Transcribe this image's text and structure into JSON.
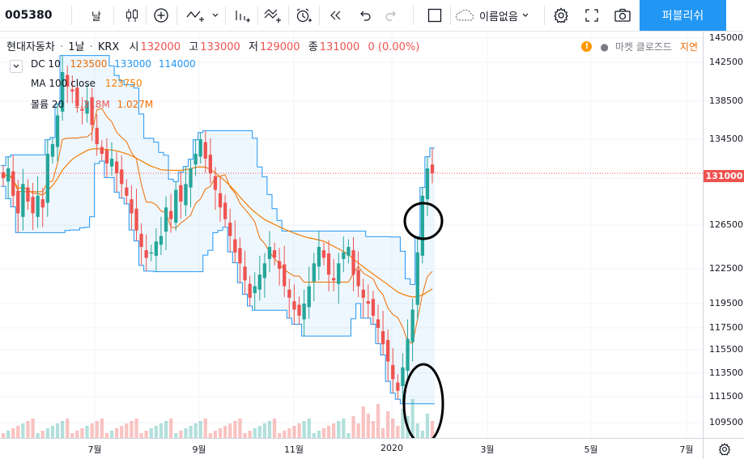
{
  "toolbar": {
    "symbol": "005380",
    "interval": "날",
    "layout_name": "이름없음",
    "publish_label": "퍼블리쉬"
  },
  "legend": {
    "symbol_name": "현대자동차",
    "interval": "1날",
    "exchange": "KRX",
    "open_label": "시",
    "open": "132000",
    "high_label": "고",
    "high": "133000",
    "low_label": "저",
    "low": "129000",
    "close_label": "종",
    "close": "131000",
    "change": "0 (0.00%)",
    "market_status": "마켓 클로즈드",
    "delay_label": "지연",
    "indicators": [
      {
        "name": "DC 10",
        "values": [
          "123500",
          "133000",
          "114000"
        ]
      },
      {
        "name": "MA 100 close",
        "values": [
          "123750"
        ]
      },
      {
        "name": "볼륨 20",
        "values": [
          "1.318M",
          "1.027M"
        ]
      }
    ]
  },
  "price_axis": [
    "145000",
    "142500",
    "138500",
    "134500",
    "130500",
    "126500",
    "122500",
    "119500",
    "117500",
    "115500",
    "113500",
    "111500",
    "109500"
  ],
  "last_price_label": "131000",
  "time_axis": [
    "7월",
    "9월",
    "11월",
    "2020",
    "3월",
    "5월",
    "7월"
  ],
  "colors": {
    "up": "#26a69a",
    "down": "#ef5350",
    "accent": "#2196f3",
    "ma": "#f57c00",
    "dc_band": "#2196f3"
  },
  "chart_data": {
    "type": "candlestick",
    "symbol": "005380",
    "interval": "1D",
    "ylim": [
      107500,
      146000
    ],
    "price_axis_ticks": [
      145000,
      142500,
      138500,
      134500,
      130500,
      126500,
      122500,
      119500,
      117500,
      115500,
      113500,
      111500,
      109500
    ],
    "time_axis_ticks": [
      "7월",
      "9월",
      "11월",
      "2020",
      "3월",
      "5월",
      "7월"
    ],
    "last": {
      "open": 132000,
      "high": 133000,
      "low": 129000,
      "close": 131000
    },
    "indicators": {
      "donchian_10": {
        "basis": 123500,
        "upper": 133000,
        "lower": 114000
      },
      "ma_100_close": 123750,
      "volume_20": {
        "volume": "1.318M",
        "ma": "1.027M"
      }
    },
    "close_series_approx": [
      130500,
      131500,
      129000,
      127500,
      130000,
      128500,
      127500,
      129000,
      128000,
      133000,
      134000,
      137000,
      141500,
      140000,
      139500,
      138000,
      137500,
      138500,
      136000,
      134000,
      133000,
      132000,
      132500,
      131000,
      130000,
      129000,
      127500,
      126000,
      124500,
      123500,
      124000,
      125000,
      125500,
      128000,
      127000,
      129500,
      128500,
      130000,
      131500,
      133000,
      134500,
      132500,
      131000,
      129500,
      128000,
      127000,
      125500,
      124000,
      123000,
      121500,
      120000,
      121000,
      122000,
      123000,
      124500,
      123500,
      122500,
      121000,
      120000,
      119000,
      118500,
      119500,
      121000,
      123000,
      124500,
      123500,
      122000,
      121500,
      123000,
      124000,
      124500,
      122000,
      121000,
      120000,
      119500,
      118500,
      117500,
      116000,
      114500,
      113000,
      112000,
      114000,
      116500,
      119000,
      124000,
      129000,
      131500,
      131000
    ]
  }
}
